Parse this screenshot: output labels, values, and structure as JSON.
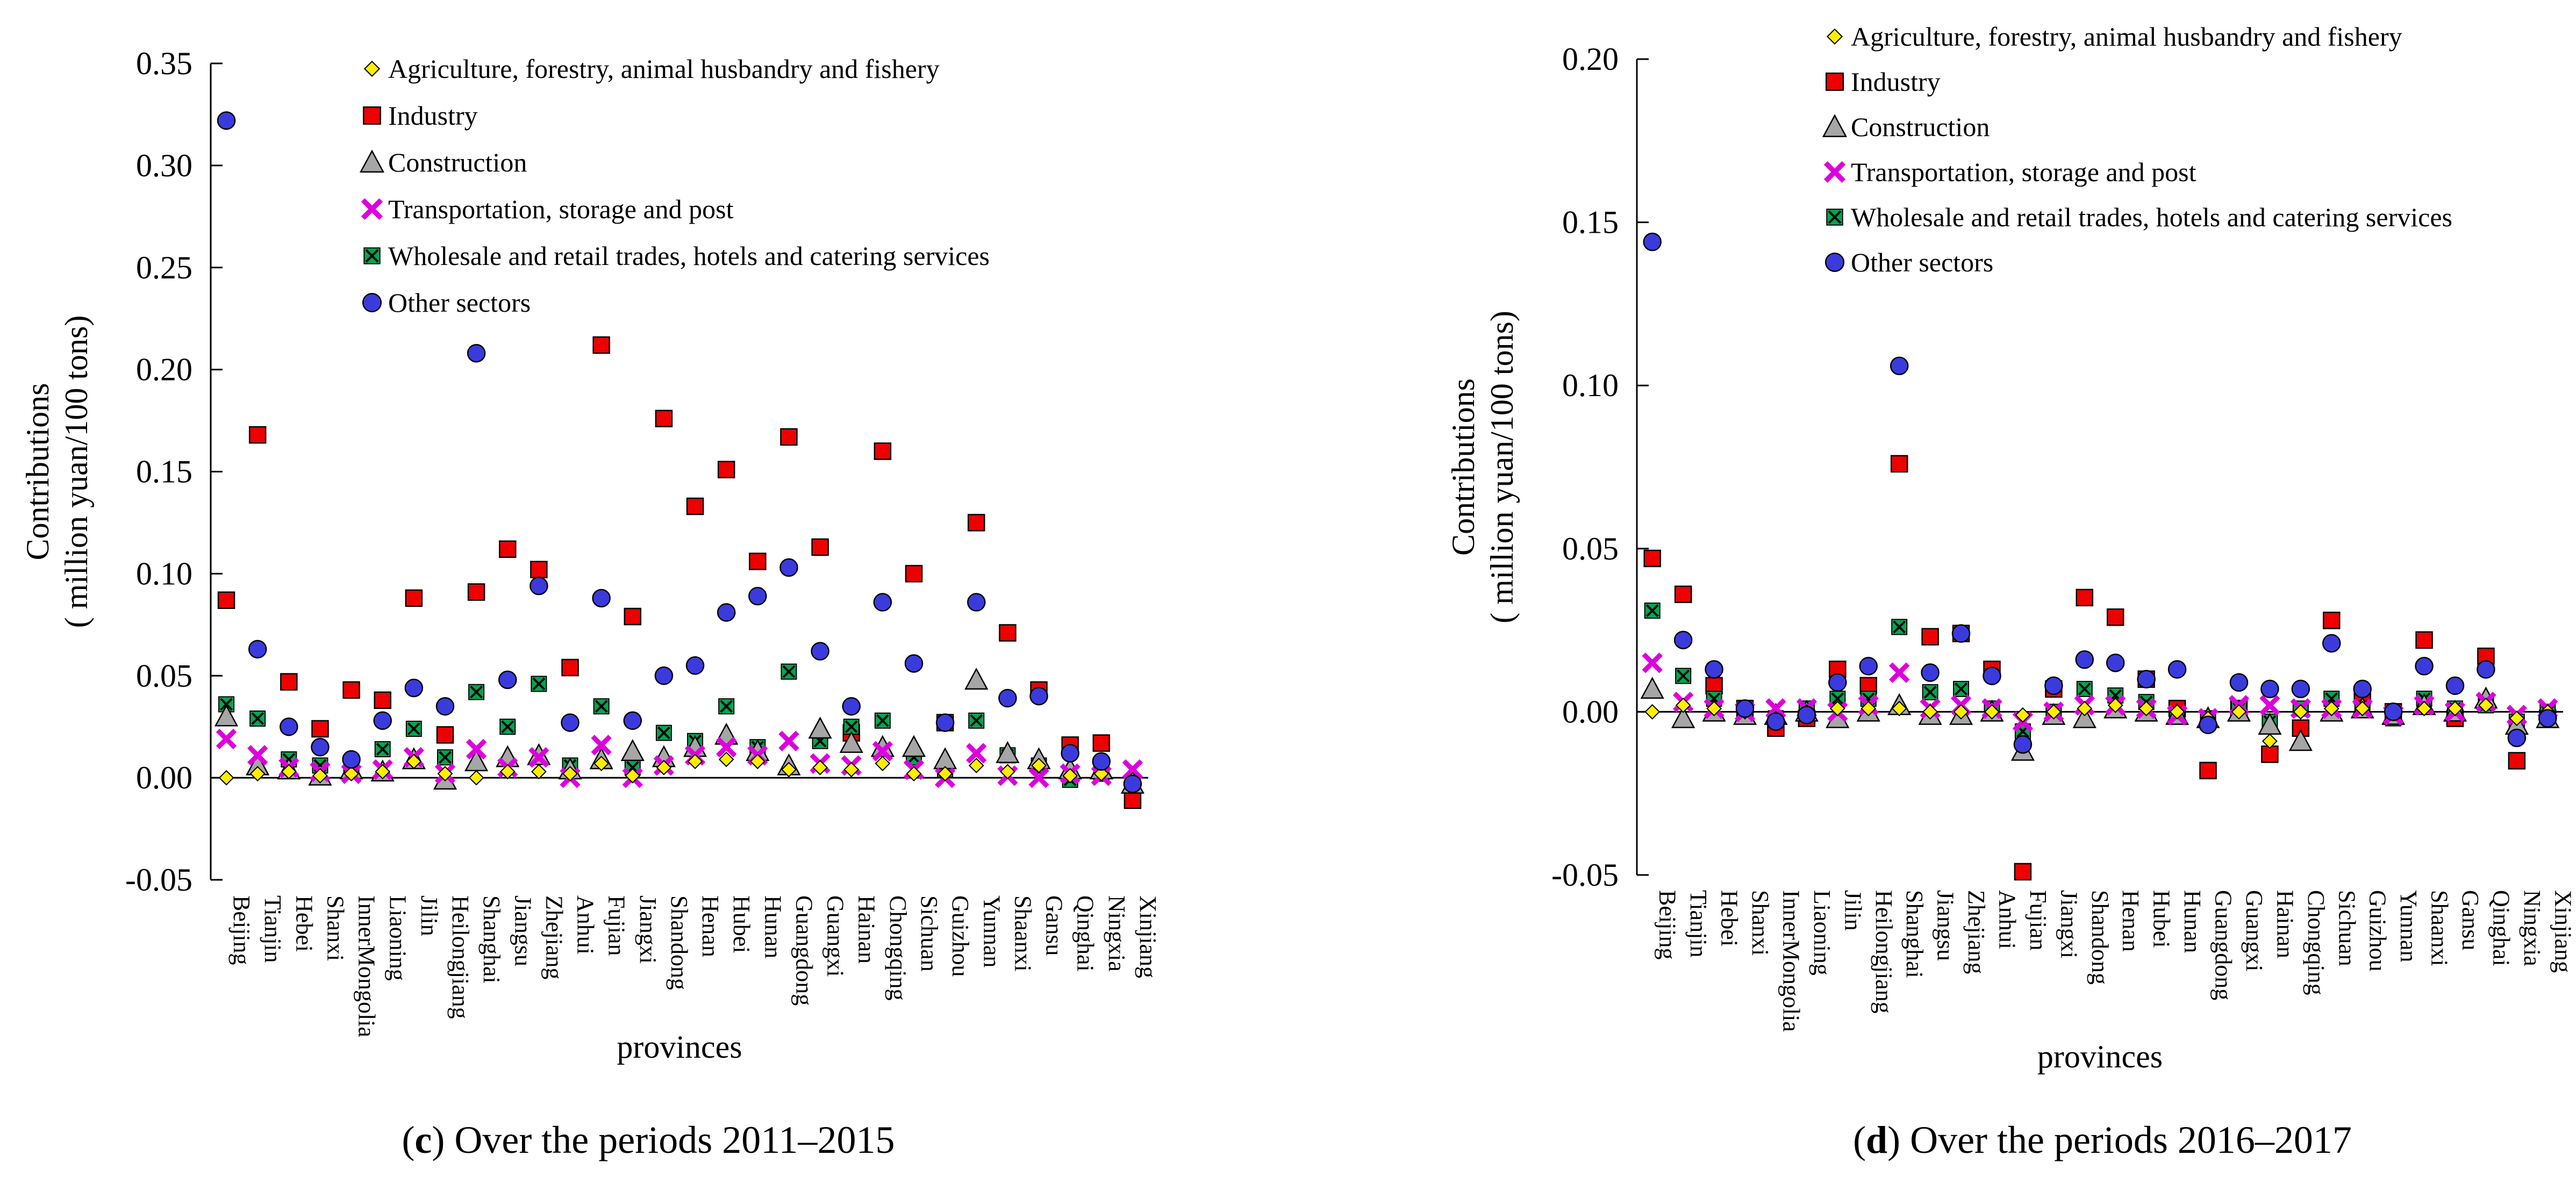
{
  "colors": {
    "agriculture": "#ffee00",
    "industry": "#ee0000",
    "construction": "#a6a6a6",
    "transportation": "#dd00dd",
    "wholesale": "#00a651",
    "other": "#3b3bdd"
  },
  "chart_data": [
    {
      "type": "scatter",
      "panel": "c",
      "caption_letter": "c",
      "caption_text": " Over the periods 2011–2015",
      "xlabel": "provinces",
      "ylabel_line1": "Contributions",
      "ylabel_line2": "( million yuan/100 tons)",
      "ylim": [
        -0.05,
        0.35
      ],
      "yticks": [
        "0.35",
        "0.30",
        "0.25",
        "0.20",
        "0.15",
        "0.10",
        "0.05",
        "0.00",
        "-0.05"
      ],
      "ytick_values": [
        0.35,
        0.3,
        0.25,
        0.2,
        0.15,
        0.1,
        0.05,
        0.0,
        -0.05
      ],
      "categories": [
        "Beijing",
        "Tianjin",
        "Hebei",
        "Shanxi",
        "InnerMongolia",
        "Liaoning",
        "Jilin",
        "Heilongjiang",
        "Shanghai",
        "Jiangsu",
        "Zhejiang",
        "Anhui",
        "Fujian",
        "Jiangxi",
        "Shandong",
        "Henan",
        "Hubei",
        "Hunan",
        "Guangdong",
        "Guangxi",
        "Hainan",
        "Chongqing",
        "Sichuan",
        "Guizhou",
        "Yunnan",
        "Shaanxi",
        "Gansu",
        "Qinghai",
        "Ningxia",
        "Xinjiang"
      ],
      "series": [
        {
          "name": "Agriculture, forestry, animal husbandry and fishery",
          "marker": "diamond",
          "color_key": "agriculture",
          "values": [
            0.0,
            0.002,
            0.003,
            0.001,
            0.002,
            0.003,
            0.008,
            0.002,
            0.0,
            0.003,
            0.003,
            0.002,
            0.007,
            0.001,
            0.005,
            0.008,
            0.009,
            0.008,
            0.004,
            0.005,
            0.004,
            0.007,
            0.002,
            0.002,
            0.006,
            0.003,
            0.006,
            0.001,
            0.002,
            -0.001
          ]
        },
        {
          "name": "Industry",
          "marker": "square",
          "color_key": "industry",
          "values": [
            0.087,
            0.168,
            0.047,
            0.024,
            0.043,
            0.038,
            0.088,
            0.021,
            0.091,
            0.112,
            0.102,
            0.054,
            0.212,
            0.079,
            0.176,
            0.133,
            0.151,
            0.106,
            0.167,
            0.113,
            0.022,
            0.16,
            0.1,
            0.027,
            0.125,
            0.071,
            0.043,
            0.016,
            0.017,
            -0.011
          ]
        },
        {
          "name": "Construction",
          "marker": "triangle",
          "color_key": "construction",
          "values": [
            0.03,
            0.006,
            0.004,
            0.001,
            0.004,
            0.003,
            0.009,
            -0.001,
            0.008,
            0.01,
            0.011,
            0.004,
            0.009,
            0.013,
            0.01,
            0.015,
            0.021,
            0.013,
            0.006,
            0.024,
            0.017,
            0.015,
            0.015,
            0.009,
            0.048,
            0.012,
            0.009,
            0.004,
            0.004,
            -0.003
          ]
        },
        {
          "name": "Transportation, storage and post",
          "marker": "x",
          "color_key": "transportation",
          "values": [
            0.019,
            0.011,
            0.005,
            0.003,
            0.002,
            0.004,
            0.01,
            0.002,
            0.014,
            0.005,
            0.01,
            0.0,
            0.016,
            0.0,
            0.006,
            0.011,
            0.015,
            0.011,
            0.018,
            0.007,
            0.006,
            0.013,
            0.004,
            0.0,
            0.012,
            0.001,
            0.0,
            0.002,
            0.001,
            0.004
          ]
        },
        {
          "name": "Wholesale and retail trades, hotels and catering services",
          "marker": "xsquare",
          "color_key": "wholesale",
          "values": [
            0.036,
            0.029,
            0.009,
            0.006,
            0.005,
            0.014,
            0.024,
            0.01,
            0.042,
            0.025,
            0.046,
            0.006,
            0.035,
            0.005,
            0.022,
            0.018,
            0.035,
            0.015,
            0.052,
            0.018,
            0.025,
            0.028,
            0.01,
            0.004,
            0.028,
            0.011,
            0.006,
            -0.001,
            0.002,
            -0.003
          ]
        },
        {
          "name": "Other sectors",
          "marker": "circle",
          "color_key": "other",
          "values": [
            0.322,
            0.063,
            0.025,
            0.015,
            0.009,
            0.028,
            0.044,
            0.035,
            0.208,
            0.048,
            0.094,
            0.027,
            0.088,
            0.028,
            0.05,
            0.055,
            0.081,
            0.089,
            0.103,
            0.062,
            0.035,
            0.086,
            0.056,
            0.027,
            0.086,
            0.039,
            0.04,
            0.012,
            0.008,
            -0.003
          ]
        }
      ]
    },
    {
      "type": "scatter",
      "panel": "d",
      "caption_letter": "d",
      "caption_text": " Over the periods 2016–2017",
      "xlabel": "provinces",
      "ylabel_line1": "Contributions",
      "ylabel_line2": "( million yuan/100 tons)",
      "ylim": [
        -0.05,
        0.2
      ],
      "yticks": [
        "0.20",
        "0.15",
        "0.10",
        "0.05",
        "0.00",
        "-0.05"
      ],
      "ytick_values": [
        0.2,
        0.15,
        0.1,
        0.05,
        0.0,
        -0.05
      ],
      "categories": [
        "Beijing",
        "Tianjin",
        "Hebei",
        "Shanxi",
        "InnerMongolia",
        "Liaoning",
        "Jilin",
        "Heilongjiang",
        "Shanghai",
        "Jiangsu",
        "Zhejiang",
        "Anhui",
        "Fujian",
        "Jiangxi",
        "Shandong",
        "Henan",
        "Hubei",
        "Hunan",
        "Guangdong",
        "Guangxi",
        "Hainan",
        "Chongqing",
        "Sichuan",
        "Guizhou",
        "Yunnan",
        "Shaanxi",
        "Gansu",
        "Qinghai",
        "Ningxia",
        "Xinjiang"
      ],
      "series": [
        {
          "name": "Agriculture, forestry, animal husbandry and fishery",
          "marker": "diamond",
          "color_key": "agriculture",
          "values": [
            0.0,
            0.002,
            0.001,
            0.0,
            -0.002,
            0.0,
            0.001,
            0.001,
            0.001,
            0.0,
            0.0,
            0.0,
            -0.001,
            0.0,
            0.001,
            0.002,
            0.001,
            0.0,
            -0.002,
            0.0,
            -0.009,
            0.0,
            0.001,
            0.001,
            0.0,
            0.001,
            0.001,
            0.002,
            -0.002,
            0.0
          ]
        },
        {
          "name": "Industry",
          "marker": "square",
          "color_key": "industry",
          "values": [
            0.047,
            0.036,
            0.008,
            0.001,
            -0.005,
            -0.002,
            0.013,
            0.008,
            0.076,
            0.023,
            0.024,
            0.013,
            -0.049,
            0.007,
            0.035,
            0.029,
            0.01,
            0.001,
            -0.018,
            0.001,
            -0.013,
            -0.005,
            0.028,
            0.005,
            0.0,
            0.022,
            -0.002,
            0.017,
            -0.015,
            -0.002
          ]
        },
        {
          "name": "Construction",
          "marker": "triangle",
          "color_key": "construction",
          "values": [
            0.007,
            -0.002,
            0.0,
            -0.001,
            -0.001,
            0.0,
            -0.002,
            0.0,
            0.002,
            -0.001,
            -0.001,
            0.0,
            -0.012,
            -0.001,
            -0.002,
            0.001,
            0.0,
            -0.001,
            -0.002,
            0.0,
            -0.004,
            -0.009,
            0.0,
            0.001,
            -0.001,
            0.002,
            0.0,
            0.004,
            -0.004,
            -0.002
          ]
        },
        {
          "name": "Transportation, storage and post",
          "marker": "x",
          "color_key": "transportation",
          "values": [
            0.015,
            0.003,
            0.001,
            0.0,
            0.001,
            0.001,
            0.0,
            0.002,
            0.012,
            0.001,
            0.002,
            0.001,
            -0.003,
            0.0,
            0.002,
            0.002,
            0.001,
            -0.001,
            -0.002,
            0.002,
            0.002,
            0.001,
            0.001,
            0.001,
            -0.001,
            0.002,
            0.0,
            0.003,
            -0.001,
            0.001
          ]
        },
        {
          "name": "Wholesale and retail trades, hotels and catering services",
          "marker": "xsquare",
          "color_key": "wholesale",
          "values": [
            0.031,
            0.011,
            0.004,
            0.0,
            -0.002,
            0.001,
            0.004,
            0.004,
            0.026,
            0.006,
            0.007,
            0.001,
            -0.006,
            0.0,
            0.007,
            0.005,
            0.003,
            -0.001,
            -0.002,
            0.001,
            -0.003,
            0.001,
            0.004,
            0.001,
            -0.002,
            0.004,
            0.001,
            0.002,
            -0.003,
            0.0
          ]
        },
        {
          "name": "Other sectors",
          "marker": "circle",
          "color_key": "other",
          "values": [
            0.144,
            0.022,
            0.013,
            0.001,
            -0.003,
            -0.001,
            0.009,
            0.014,
            0.106,
            0.012,
            0.024,
            0.011,
            -0.01,
            0.008,
            0.016,
            0.015,
            0.01,
            0.013,
            -0.004,
            0.009,
            0.007,
            0.007,
            0.021,
            0.007,
            0.0,
            0.014,
            0.008,
            0.013,
            -0.008,
            -0.002
          ]
        }
      ]
    }
  ]
}
